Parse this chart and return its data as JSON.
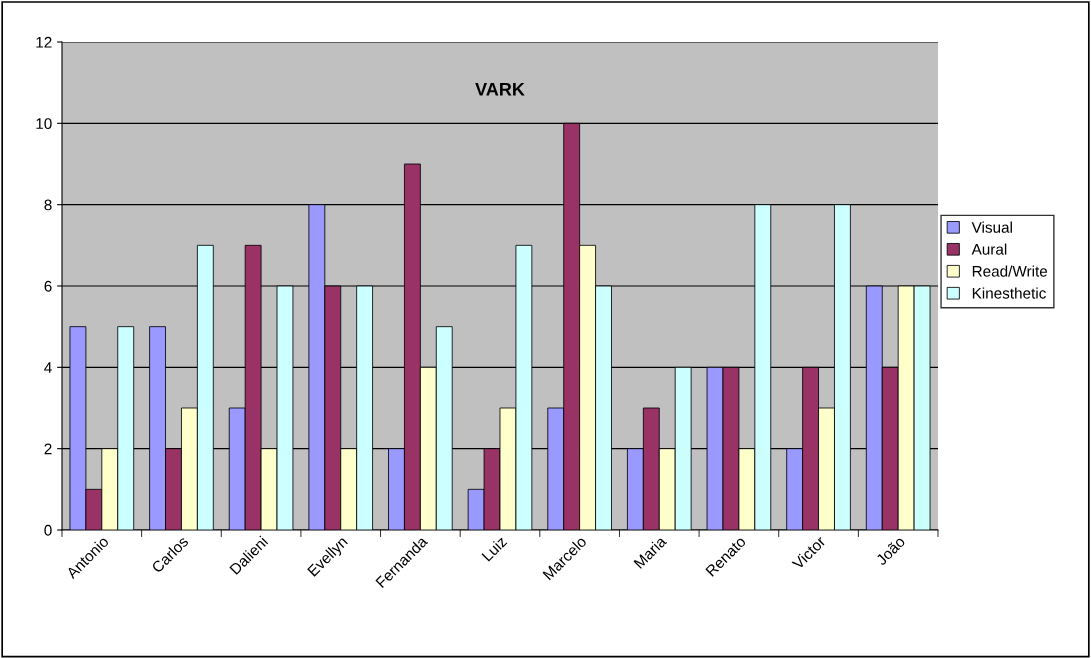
{
  "chart_data": {
    "type": "bar",
    "title": "VARK",
    "categories": [
      "Antonio",
      "Carlos",
      "Dalieni",
      "Evellyn",
      "Fernanda",
      "Luiz",
      "Marcelo",
      "Maria",
      "Renato",
      "Victor",
      "João"
    ],
    "series": [
      {
        "name": "Visual",
        "color": "#9999ff",
        "values": [
          5,
          5,
          3,
          8,
          2,
          1,
          3,
          2,
          4,
          2,
          6
        ]
      },
      {
        "name": "Aural",
        "color": "#993366",
        "values": [
          1,
          2,
          7,
          6,
          9,
          2,
          10,
          3,
          4,
          4,
          4
        ]
      },
      {
        "name": "Read/Write",
        "color": "#ffffcc",
        "values": [
          2,
          3,
          2,
          2,
          4,
          3,
          7,
          2,
          2,
          3,
          6
        ]
      },
      {
        "name": "Kinesthetic",
        "color": "#ccffff",
        "values": [
          5,
          7,
          6,
          6,
          5,
          7,
          6,
          4,
          8,
          8,
          6
        ]
      }
    ],
    "ylim": [
      0,
      12
    ],
    "yticks": [
      0,
      2,
      4,
      6,
      8,
      10,
      12
    ],
    "grid": "y",
    "legend": "right"
  }
}
